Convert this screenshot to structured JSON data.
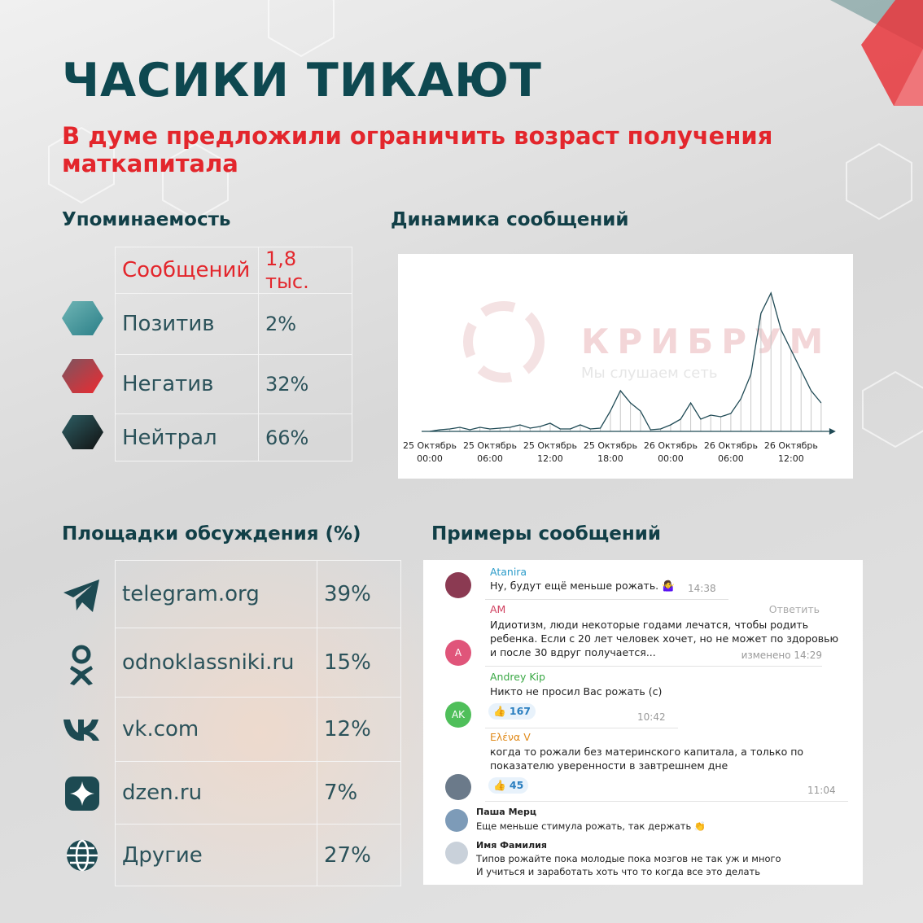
{
  "header": {
    "title": "ЧАСИКИ ТИКАЮТ",
    "subtitle": "В думе предложили ограничить возраст получения маткапитала"
  },
  "mentions": {
    "title": "Упоминаемость",
    "rows": [
      [
        "Сообщений",
        "1,8 тыс."
      ],
      [
        "Позитив",
        "2%"
      ],
      [
        "Негатив",
        "32%"
      ],
      [
        "Нейтрал",
        "66%"
      ]
    ]
  },
  "chart_data": {
    "type": "line",
    "title": "Динамика сообщений",
    "watermark": [
      "КРИБРУМ",
      "Мы слушаем сеть"
    ],
    "categories": [
      [
        "25 Октябрь",
        "00:00"
      ],
      null,
      null,
      null,
      null,
      null,
      [
        "25 Октябрь",
        "06:00"
      ],
      null,
      null,
      null,
      null,
      null,
      [
        "25 Октябрь",
        "12:00"
      ],
      null,
      null,
      null,
      null,
      null,
      [
        "25 Октябрь",
        "18:00"
      ],
      null,
      null,
      null,
      null,
      null,
      [
        "26 Октябрь",
        "00:00"
      ],
      null,
      null,
      null,
      null,
      null,
      [
        "26 Октябрь",
        "06:00"
      ],
      null,
      null,
      null,
      null,
      null,
      [
        "26 Октябрь",
        "12:00"
      ],
      null,
      null,
      null
    ],
    "values": [
      0,
      2,
      3,
      5,
      2,
      5,
      3,
      4,
      5,
      8,
      4,
      6,
      10,
      3,
      3,
      8,
      3,
      4,
      25,
      50,
      35,
      25,
      2,
      3,
      8,
      15,
      35,
      15,
      20,
      18,
      22,
      40,
      70,
      145,
      170,
      125,
      100,
      75,
      50,
      35
    ],
    "color": "#1f4a55",
    "ylim": [
      0,
      180
    ]
  },
  "platforms": {
    "title": "Площадки обсуждения (%)",
    "rows": [
      [
        "telegram.org",
        "39%"
      ],
      [
        "odnoklassniki.ru",
        "15%"
      ],
      [
        "vk.com",
        "12%"
      ],
      [
        "dzen.ru",
        "7%"
      ],
      [
        "Другие",
        "27%"
      ]
    ]
  },
  "messages": {
    "title": "Примеры сообщений",
    "items": [
      {
        "author": "Atanira",
        "lines": [
          "Ну, будут ещё меньше рожать. 🤷‍♀️"
        ],
        "time": "14:38"
      },
      {
        "author": "AM",
        "avatar": "A",
        "reply": "Ответить",
        "lines": [
          "Идиотизм, люди некоторые годами лечатся, чтобы родить",
          "ребенка. Если с 20 лет человек хочет, но не может по здоровью",
          "и после 30 вдруг получается..."
        ],
        "time": "изменено 14:29"
      },
      {
        "author": "Andrey Kip",
        "avatar": "AK",
        "lines": [
          "Никто не просил Вас рожать (с)"
        ],
        "reaction": "👍 167",
        "time": "10:42"
      },
      {
        "author": "Ελένα V",
        "lines": [
          "когда то рожали без материнского капитала, а только по",
          "показателю уверенности в завтрешнем дне"
        ],
        "reaction": "👍 45",
        "time": "11:04"
      },
      {
        "author": "Паша Мерц",
        "lines": [
          "Еще меньше стимула рожать, так держать 👏"
        ]
      },
      {
        "author": "Имя Фамилия",
        "lines": [
          "Типов рожайте пока молодые пока мозгов не так уж и много",
          "И учиться и заработать хоть что то когда все это делать"
        ]
      }
    ]
  }
}
